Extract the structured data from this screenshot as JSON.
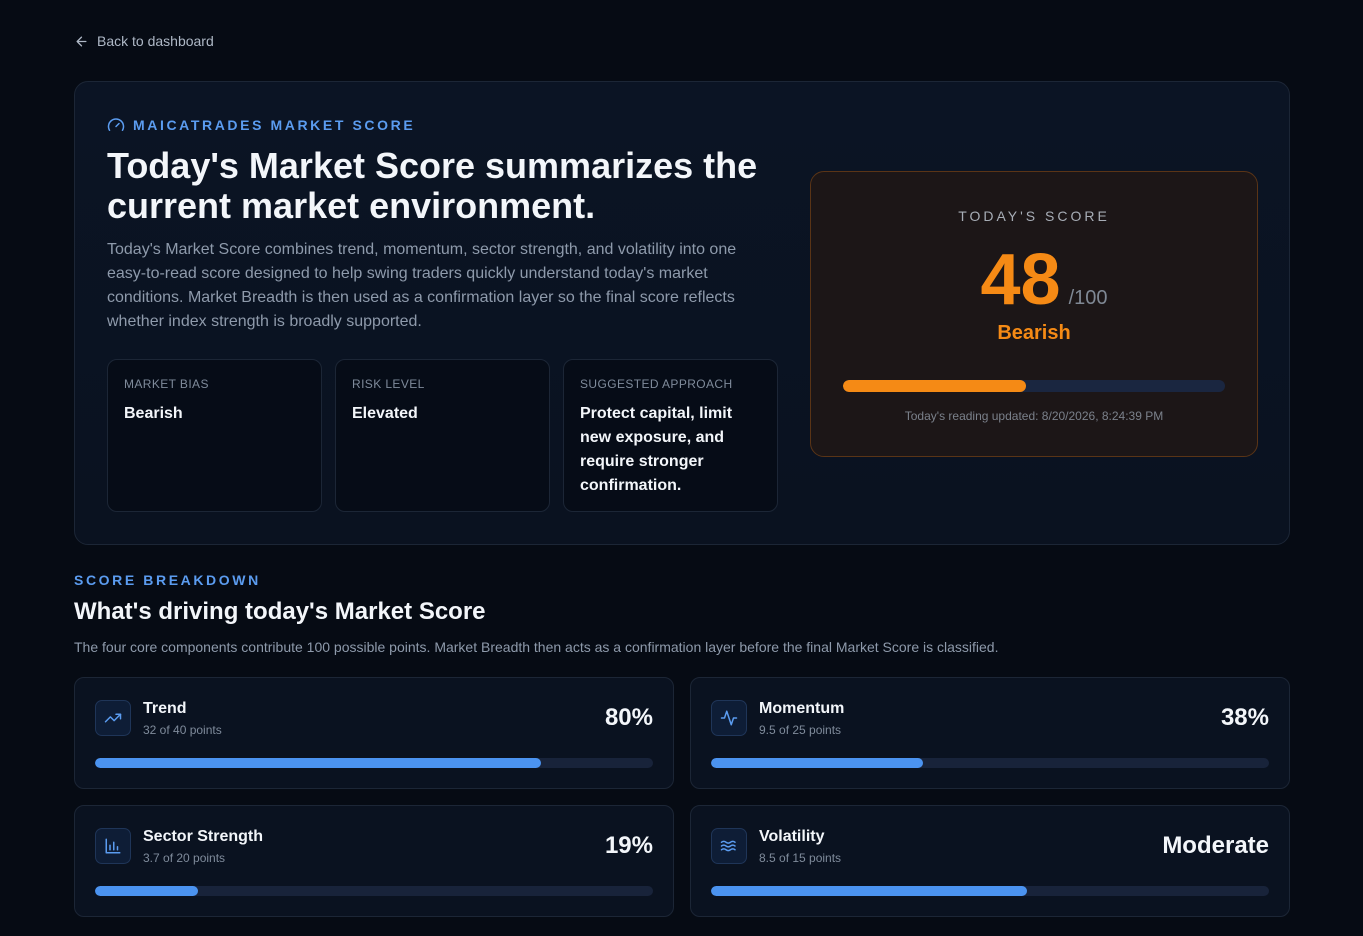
{
  "nav": {
    "back_label": "Back to dashboard"
  },
  "hero": {
    "eyebrow": "MAICATRADES MARKET SCORE",
    "title": "Today's Market Score summarizes the current market environment.",
    "description": "Today's Market Score combines trend, momentum, sector strength, and volatility into one easy-to-read score designed to help swing traders quickly understand today's market conditions. Market Breadth is then used as a confirmation layer so the final score reflects whether index strength is broadly supported.",
    "cards": [
      {
        "label": "MARKET BIAS",
        "value": "Bearish"
      },
      {
        "label": "RISK LEVEL",
        "value": "Elevated"
      },
      {
        "label": "SUGGESTED APPROACH",
        "value": "Protect capital, limit new exposure, and require stronger confirmation."
      }
    ]
  },
  "score": {
    "title": "TODAY'S SCORE",
    "value": "48",
    "max": "/100",
    "value_fraction": 0.48,
    "label": "Bearish",
    "updated": "Today's reading updated: 8/20/2026, 8:24:39 PM",
    "accent": "#f58a15"
  },
  "breakdown": {
    "eyebrow": "SCORE BREAKDOWN",
    "title": "What's driving today's Market Score",
    "description": "The four core components contribute 100 possible points. Market Breadth then acts as a confirmation layer before the final Market Score is classified.",
    "accent": "#4b93f0",
    "components": [
      {
        "name": "Trend",
        "points": "32 of 40 points",
        "display": "80%",
        "fraction": 0.8,
        "icon": "trending-up-icon"
      },
      {
        "name": "Momentum",
        "points": "9.5 of 25 points",
        "display": "38%",
        "fraction": 0.38,
        "icon": "activity-icon"
      },
      {
        "name": "Sector Strength",
        "points": "3.7 of 20 points",
        "display": "19%",
        "fraction": 0.185,
        "icon": "bar-chart-icon"
      },
      {
        "name": "Volatility",
        "points": "8.5 of 15 points",
        "display": "Moderate",
        "fraction": 0.567,
        "icon": "waves-icon"
      }
    ]
  }
}
